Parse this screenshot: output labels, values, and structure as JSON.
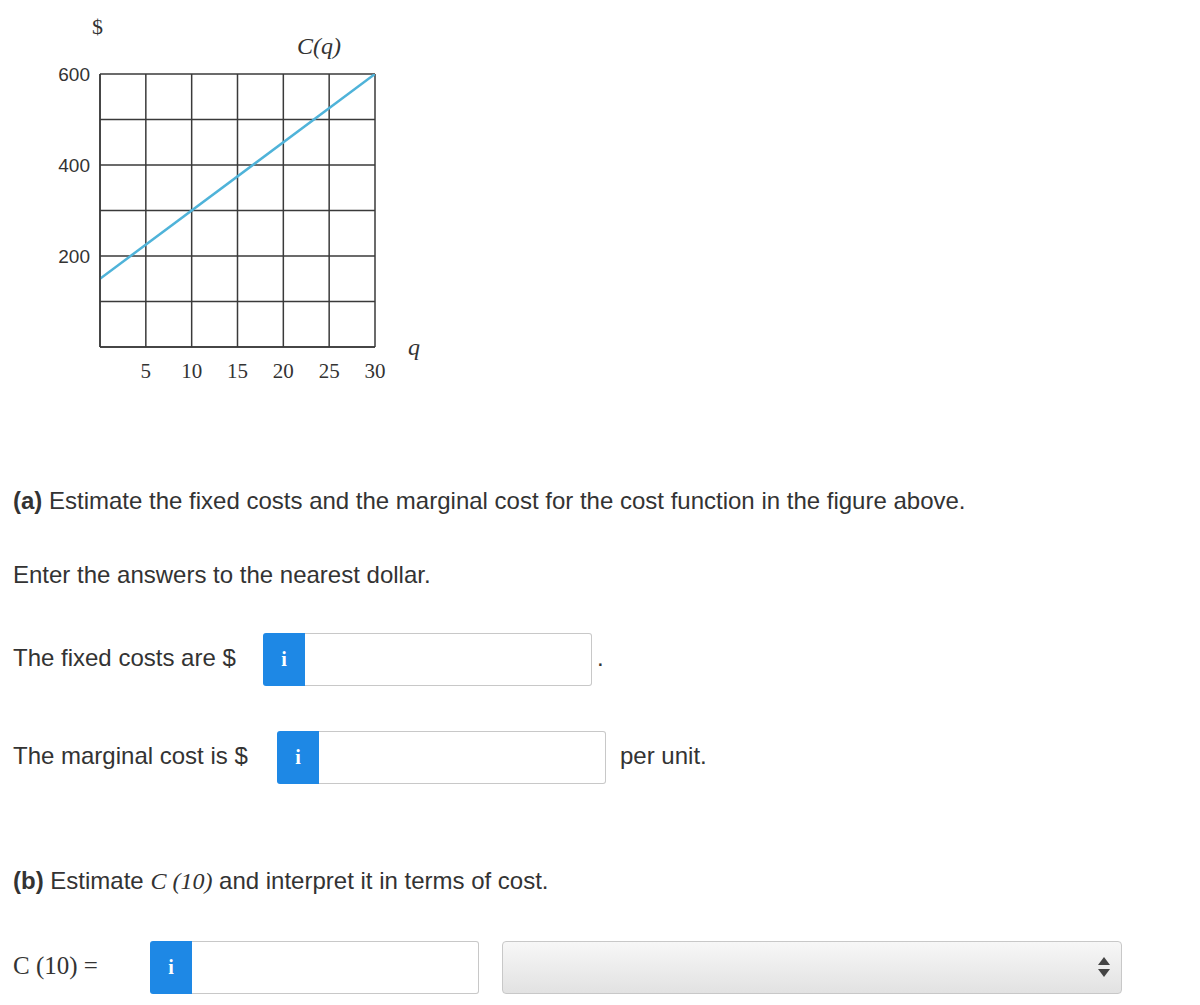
{
  "chart_data": {
    "type": "line",
    "title": "C(q)",
    "y_label": "$",
    "x_label": "q",
    "x": [
      0,
      30
    ],
    "values": [
      150,
      600
    ],
    "color": "#4fb3d9",
    "xlim": [
      0,
      30
    ],
    "xticks": [
      5,
      10,
      15,
      20,
      25,
      30
    ],
    "ylim": [
      0,
      600
    ],
    "yticks": [
      200,
      400,
      600
    ],
    "grid": true
  },
  "document": {
    "part_a": {
      "label": "(a)",
      "text": "Estimate the fixed costs and the marginal cost for the cost function in the figure above.",
      "instruction": "Enter the answers to the nearest dollar.",
      "fields": [
        {
          "prefix": "The fixed costs are $",
          "button": "i",
          "suffix": "."
        },
        {
          "prefix": "The marginal cost is $",
          "button": "i",
          "suffix": "per unit."
        }
      ]
    },
    "part_b": {
      "label": "(b)",
      "text_before": "Estimate",
      "math": "C (10)",
      "text_after": "and interpret it in terms of cost.",
      "fields": [
        {
          "prefix": "C (10) =",
          "button": "i"
        }
      ]
    }
  }
}
